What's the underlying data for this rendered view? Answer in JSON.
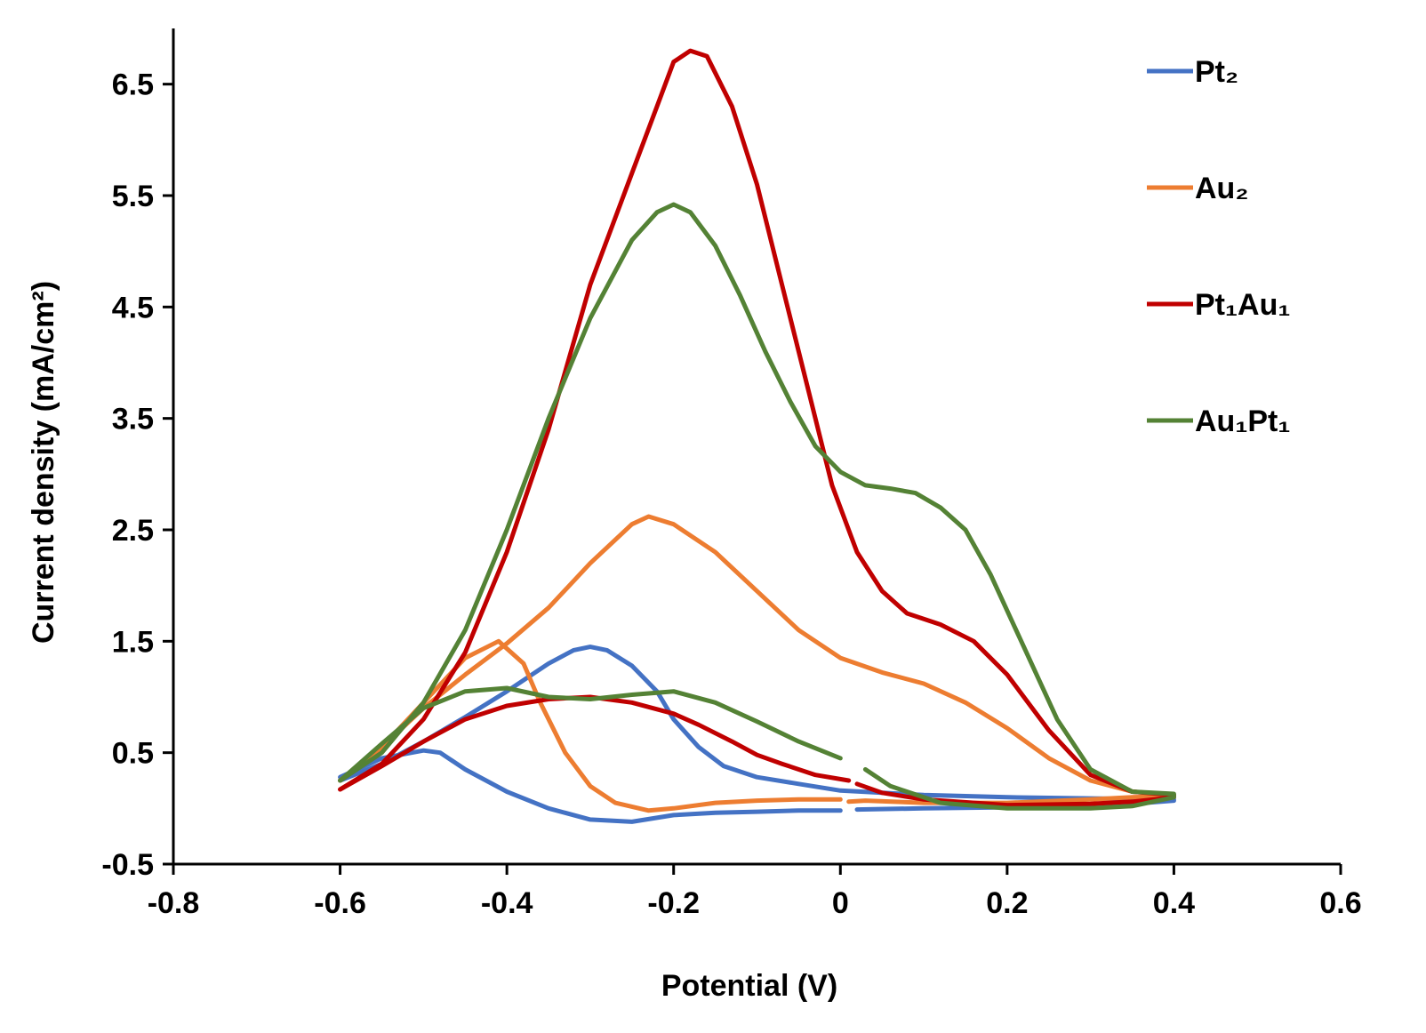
{
  "chart_data": {
    "type": "line",
    "title": "",
    "xlabel": "Potential (V)",
    "ylabel": "Current density (mA/cm²)",
    "xlim": [
      -0.8,
      0.6
    ],
    "ylim": [
      -0.5,
      7.0
    ],
    "x_ticks": [
      -0.8,
      -0.6,
      -0.4,
      -0.2,
      0,
      0.2,
      0.4,
      0.6
    ],
    "x_tick_labels": [
      "-0.8",
      "-0.6",
      "-0.4",
      "-0.2",
      "0",
      "0.2",
      "0.4",
      "0.6"
    ],
    "y_ticks": [
      -0.5,
      0.5,
      1.5,
      2.5,
      3.5,
      4.5,
      5.5,
      6.5
    ],
    "y_tick_labels": [
      "-0.5",
      "0.5",
      "1.5",
      "2.5",
      "3.5",
      "4.5",
      "5.5",
      "6.5"
    ],
    "grid": false,
    "legend_position": "top-right",
    "series": [
      {
        "name": "Pt₂",
        "color": "#4472C4",
        "segments": [
          [
            [
              -0.6,
              0.25
            ],
            [
              -0.55,
              0.4
            ],
            [
              -0.5,
              0.6
            ],
            [
              -0.45,
              0.82
            ],
            [
              -0.4,
              1.05
            ],
            [
              -0.35,
              1.3
            ],
            [
              -0.32,
              1.42
            ],
            [
              -0.3,
              1.45
            ],
            [
              -0.28,
              1.42
            ],
            [
              -0.25,
              1.28
            ],
            [
              -0.22,
              1.05
            ],
            [
              -0.2,
              0.8
            ],
            [
              -0.17,
              0.55
            ],
            [
              -0.14,
              0.38
            ],
            [
              -0.1,
              0.28
            ],
            [
              -0.05,
              0.22
            ],
            [
              0.0,
              0.16
            ],
            [
              0.05,
              0.14
            ],
            [
              0.1,
              0.12
            ],
            [
              0.2,
              0.1
            ],
            [
              0.3,
              0.09
            ],
            [
              0.4,
              0.08
            ],
            [
              0.4,
              0.07
            ],
            [
              0.35,
              0.04
            ],
            [
              0.3,
              0.03
            ],
            [
              0.2,
              0.01
            ],
            [
              0.1,
              0.0
            ],
            [
              0.02,
              -0.01
            ]
          ],
          [
            [
              0.0,
              -0.02
            ],
            [
              -0.05,
              -0.02
            ],
            [
              -0.1,
              -0.03
            ],
            [
              -0.15,
              -0.04
            ],
            [
              -0.2,
              -0.06
            ],
            [
              -0.25,
              -0.12
            ],
            [
              -0.3,
              -0.1
            ],
            [
              -0.35,
              0.0
            ],
            [
              -0.4,
              0.15
            ],
            [
              -0.45,
              0.35
            ],
            [
              -0.48,
              0.5
            ],
            [
              -0.5,
              0.52
            ],
            [
              -0.55,
              0.45
            ],
            [
              -0.6,
              0.28
            ]
          ]
        ]
      },
      {
        "name": "Au₂",
        "color": "#ED7D31",
        "segments": [
          [
            [
              -0.6,
              0.25
            ],
            [
              -0.55,
              0.55
            ],
            [
              -0.5,
              0.9
            ],
            [
              -0.45,
              1.2
            ],
            [
              -0.4,
              1.48
            ],
            [
              -0.35,
              1.8
            ],
            [
              -0.3,
              2.2
            ],
            [
              -0.25,
              2.55
            ],
            [
              -0.23,
              2.62
            ],
            [
              -0.2,
              2.55
            ],
            [
              -0.15,
              2.3
            ],
            [
              -0.1,
              1.95
            ],
            [
              -0.05,
              1.6
            ],
            [
              0.0,
              1.35
            ],
            [
              0.05,
              1.22
            ],
            [
              0.1,
              1.12
            ],
            [
              0.15,
              0.95
            ],
            [
              0.2,
              0.72
            ],
            [
              0.25,
              0.45
            ],
            [
              0.3,
              0.25
            ],
            [
              0.35,
              0.15
            ],
            [
              0.4,
              0.12
            ],
            [
              0.4,
              0.11
            ],
            [
              0.35,
              0.1
            ],
            [
              0.3,
              0.08
            ],
            [
              0.2,
              0.05
            ],
            [
              0.1,
              0.05
            ],
            [
              0.03,
              0.07
            ],
            [
              0.01,
              0.06
            ]
          ],
          [
            [
              0.0,
              0.08
            ],
            [
              -0.05,
              0.08
            ],
            [
              -0.1,
              0.07
            ],
            [
              -0.15,
              0.05
            ],
            [
              -0.2,
              0.0
            ],
            [
              -0.23,
              -0.02
            ],
            [
              -0.27,
              0.05
            ],
            [
              -0.3,
              0.2
            ],
            [
              -0.33,
              0.5
            ],
            [
              -0.36,
              0.95
            ],
            [
              -0.38,
              1.3
            ],
            [
              -0.41,
              1.5
            ],
            [
              -0.45,
              1.35
            ],
            [
              -0.5,
              0.95
            ],
            [
              -0.55,
              0.55
            ],
            [
              -0.6,
              0.25
            ]
          ]
        ]
      },
      {
        "name": "Pt₁Au₁",
        "color": "#C00000",
        "segments": [
          [
            [
              -0.6,
              0.17
            ],
            [
              -0.55,
              0.4
            ],
            [
              -0.5,
              0.8
            ],
            [
              -0.45,
              1.4
            ],
            [
              -0.4,
              2.3
            ],
            [
              -0.35,
              3.4
            ],
            [
              -0.3,
              4.7
            ],
            [
              -0.25,
              5.7
            ],
            [
              -0.22,
              6.3
            ],
            [
              -0.2,
              6.7
            ],
            [
              -0.18,
              6.8
            ],
            [
              -0.16,
              6.75
            ],
            [
              -0.13,
              6.3
            ],
            [
              -0.1,
              5.6
            ],
            [
              -0.07,
              4.7
            ],
            [
              -0.04,
              3.8
            ],
            [
              -0.01,
              2.9
            ],
            [
              0.02,
              2.3
            ],
            [
              0.05,
              1.95
            ],
            [
              0.08,
              1.75
            ],
            [
              0.12,
              1.65
            ],
            [
              0.16,
              1.5
            ],
            [
              0.2,
              1.2
            ],
            [
              0.25,
              0.7
            ],
            [
              0.3,
              0.3
            ],
            [
              0.35,
              0.15
            ],
            [
              0.4,
              0.12
            ],
            [
              0.4,
              0.1
            ],
            [
              0.35,
              0.06
            ],
            [
              0.3,
              0.04
            ],
            [
              0.2,
              0.03
            ],
            [
              0.1,
              0.08
            ],
            [
              0.05,
              0.14
            ],
            [
              0.02,
              0.22
            ]
          ],
          [
            [
              0.01,
              0.25
            ],
            [
              -0.03,
              0.3
            ],
            [
              -0.07,
              0.4
            ],
            [
              -0.1,
              0.48
            ],
            [
              -0.13,
              0.6
            ],
            [
              -0.17,
              0.75
            ],
            [
              -0.2,
              0.85
            ],
            [
              -0.25,
              0.95
            ],
            [
              -0.3,
              1.0
            ],
            [
              -0.35,
              0.98
            ],
            [
              -0.4,
              0.92
            ],
            [
              -0.45,
              0.8
            ],
            [
              -0.5,
              0.6
            ],
            [
              -0.55,
              0.38
            ],
            [
              -0.6,
              0.17
            ]
          ]
        ]
      },
      {
        "name": "Au₁Pt₁",
        "color": "#548235",
        "segments": [
          [
            [
              -0.6,
              0.25
            ],
            [
              -0.55,
              0.5
            ],
            [
              -0.5,
              0.95
            ],
            [
              -0.45,
              1.6
            ],
            [
              -0.4,
              2.5
            ],
            [
              -0.35,
              3.5
            ],
            [
              -0.3,
              4.4
            ],
            [
              -0.25,
              5.1
            ],
            [
              -0.22,
              5.35
            ],
            [
              -0.2,
              5.42
            ],
            [
              -0.18,
              5.35
            ],
            [
              -0.15,
              5.05
            ],
            [
              -0.12,
              4.6
            ],
            [
              -0.09,
              4.1
            ],
            [
              -0.06,
              3.65
            ],
            [
              -0.03,
              3.25
            ],
            [
              0.0,
              3.02
            ],
            [
              0.03,
              2.9
            ],
            [
              0.06,
              2.87
            ],
            [
              0.09,
              2.83
            ],
            [
              0.12,
              2.7
            ],
            [
              0.15,
              2.5
            ],
            [
              0.18,
              2.1
            ],
            [
              0.22,
              1.45
            ],
            [
              0.26,
              0.8
            ],
            [
              0.3,
              0.35
            ],
            [
              0.35,
              0.15
            ],
            [
              0.4,
              0.13
            ],
            [
              0.4,
              0.1
            ],
            [
              0.35,
              0.02
            ],
            [
              0.3,
              0.0
            ],
            [
              0.2,
              0.0
            ],
            [
              0.12,
              0.05
            ],
            [
              0.06,
              0.2
            ],
            [
              0.03,
              0.35
            ]
          ],
          [
            [
              0.0,
              0.45
            ],
            [
              -0.05,
              0.6
            ],
            [
              -0.1,
              0.78
            ],
            [
              -0.15,
              0.95
            ],
            [
              -0.2,
              1.05
            ],
            [
              -0.25,
              1.02
            ],
            [
              -0.3,
              0.98
            ],
            [
              -0.35,
              1.0
            ],
            [
              -0.4,
              1.08
            ],
            [
              -0.45,
              1.05
            ],
            [
              -0.5,
              0.9
            ],
            [
              -0.55,
              0.58
            ],
            [
              -0.6,
              0.25
            ]
          ]
        ]
      }
    ]
  }
}
